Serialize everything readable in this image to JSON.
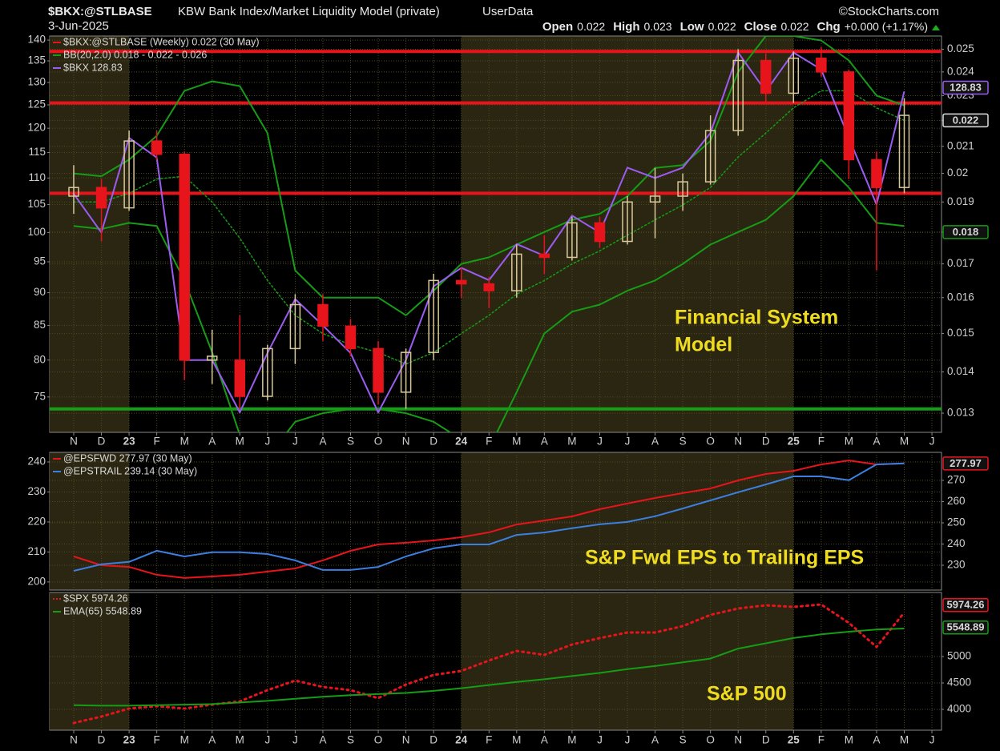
{
  "header": {
    "symbol": "$BKX:@STLBASE",
    "title": "KBW Bank Index/Market Liquidity Model (private)",
    "source": "UserData",
    "date": "3-Jun-2025",
    "copyright": "©StockCharts.com",
    "quote": [
      {
        "label": "Open",
        "value": "0.022"
      },
      {
        "label": "High",
        "value": "0.023"
      },
      {
        "label": "Low",
        "value": "0.022"
      },
      {
        "label": "Close",
        "value": "0.022"
      },
      {
        "label": "Chg",
        "value": "+0.000 (+1.17%)"
      }
    ]
  },
  "chart_data": [
    {
      "type": "candlestick",
      "annotation": [
        "Financial System",
        "Model"
      ],
      "categories": [
        "N",
        "D",
        "23",
        "F",
        "M",
        "A",
        "M",
        "J",
        "J",
        "A",
        "S",
        "O",
        "N",
        "D",
        "24",
        "F",
        "M",
        "A",
        "M",
        "J",
        "J",
        "A",
        "S",
        "O",
        "N",
        "D",
        "25",
        "F",
        "M",
        "A",
        "M",
        "J"
      ],
      "ylog": true,
      "ylim": [
        70.5,
        141
      ],
      "yticks": [
        75,
        80,
        85,
        90,
        95,
        100,
        105,
        110,
        115,
        120,
        125,
        130,
        135,
        140
      ],
      "y2log": true,
      "y2lim": [
        0.01256,
        0.0256
      ],
      "y2ticks": [
        0.013,
        0.014,
        0.015,
        0.016,
        0.017,
        0.018,
        0.019,
        0.02,
        0.021,
        0.022,
        0.023,
        0.024,
        0.025
      ],
      "grid": true,
      "hlines": [
        {
          "value": 0.0249,
          "color": "#e8141c"
        },
        {
          "value": 0.0227,
          "color": "#e8141c"
        },
        {
          "value": 0.0193,
          "color": "#e8141c"
        },
        {
          "value": 0.0131,
          "color": "#169c16"
        }
      ],
      "series": [
        {
          "name": "$BKX:@STLBASE (Weekly) 0.022 (30 May)",
          "color": "#e8141c",
          "up_color": "#d9c89a",
          "axis": "y2",
          "open": [
            0.0192,
            0.0195,
            0.0188,
            0.0212,
            0.0207,
            0.0143,
            0.0143,
            0.0134,
            0.0146,
            0.0158,
            0.0152,
            0.0146,
            0.0135,
            0.0145,
            0.0165,
            0.0164,
            0.0162,
            0.0173,
            0.0172,
            0.0183,
            0.0177,
            0.019,
            0.0192,
            0.0197,
            0.0216,
            0.0245,
            0.0231,
            0.0246,
            0.024,
            0.0205,
            0.0195,
            null
          ],
          "high": [
            0.0203,
            0.0198,
            0.0216,
            0.0216,
            0.0208,
            0.0151,
            0.0155,
            0.0147,
            0.0161,
            0.0161,
            0.0154,
            0.0148,
            0.0146,
            0.0167,
            0.0169,
            0.0166,
            0.0176,
            0.0179,
            0.0185,
            0.0185,
            0.0192,
            0.0202,
            0.02,
            0.0222,
            0.025,
            0.0248,
            0.0249,
            0.0251,
            0.0241,
            0.0208,
            0.0229,
            null
          ],
          "low": [
            0.0186,
            0.0177,
            0.0187,
            0.0205,
            0.0138,
            0.0137,
            0.0131,
            0.0133,
            0.0142,
            0.0148,
            0.0144,
            0.0132,
            0.0131,
            0.0143,
            0.016,
            0.0157,
            0.016,
            0.0167,
            0.0171,
            0.0175,
            0.0176,
            0.0178,
            0.0187,
            0.0196,
            0.0214,
            0.0227,
            0.0227,
            0.0238,
            0.0198,
            0.0168,
            0.0193,
            null
          ],
          "close": [
            0.0195,
            0.0188,
            0.0212,
            0.0207,
            0.0143,
            0.0144,
            0.0134,
            0.0146,
            0.0158,
            0.0152,
            0.0146,
            0.0135,
            0.0145,
            0.0165,
            0.0164,
            0.0162,
            0.0173,
            0.0172,
            0.0183,
            0.0177,
            0.019,
            0.0192,
            0.0197,
            0.0216,
            0.0245,
            0.0231,
            0.0246,
            0.024,
            0.0205,
            0.0195,
            0.0222,
            null
          ]
        },
        {
          "name": "BB(20,2.0) 0.018 - 0.022 - 0.026",
          "color": "#169c16",
          "axis": "y2",
          "upper": [
            0.02,
            0.0199,
            0.0205,
            0.0214,
            0.0232,
            0.0236,
            0.0234,
            0.0215,
            0.0168,
            0.016,
            0.016,
            0.016,
            0.0155,
            0.0162,
            0.017,
            0.0172,
            0.0176,
            0.018,
            0.0184,
            0.0186,
            0.0192,
            0.0202,
            0.0203,
            0.0212,
            0.024,
            0.0256,
            0.0256,
            0.0254,
            0.0245,
            0.023,
            0.0226,
            null
          ],
          "middle": [
            0.019,
            0.019,
            0.0193,
            0.0198,
            0.0199,
            0.019,
            0.0178,
            0.0165,
            0.0155,
            0.015,
            0.0147,
            0.0145,
            0.0142,
            0.0145,
            0.015,
            0.0155,
            0.0161,
            0.0165,
            0.017,
            0.0174,
            0.0179,
            0.0184,
            0.0189,
            0.0195,
            0.0206,
            0.0215,
            0.0225,
            0.0232,
            0.0232,
            0.0225,
            0.022,
            null
          ],
          "lower": [
            0.0182,
            0.0181,
            0.0183,
            0.0182,
            0.0165,
            0.0145,
            0.0125,
            0.012,
            0.0128,
            0.013,
            0.0131,
            0.0131,
            0.013,
            0.0128,
            0.0124,
            0.0122,
            0.0135,
            0.015,
            0.0156,
            0.0158,
            0.0162,
            0.0165,
            0.017,
            0.0176,
            0.018,
            0.0184,
            0.0192,
            0.0205,
            0.0195,
            0.0183,
            0.0182,
            null
          ],
          "middle_style": "dotted"
        },
        {
          "name": "$BKX 128.83",
          "color": "#9b5cf2",
          "axis": "y",
          "values": [
            107,
            100,
            118,
            114,
            80,
            80,
            73,
            81,
            89,
            85,
            81,
            73,
            80,
            91,
            94,
            92,
            98,
            96,
            103,
            100,
            112,
            110,
            112,
            119,
            137,
            128,
            137,
            133,
            118,
            105,
            128,
            null
          ]
        }
      ],
      "end_labels": [
        {
          "value": 128.83,
          "axis": "y",
          "color": "#9b5cf2"
        },
        {
          "value": 0.022,
          "axis": "y2",
          "color": "#e0e0e0"
        },
        {
          "value": 0.018,
          "axis": "y2",
          "color": "#169c16"
        }
      ]
    },
    {
      "type": "line",
      "annotation": [
        "S&P Fwd EPS to Trailing EPS"
      ],
      "ylim": [
        197.3,
        243.2
      ],
      "yticks": [
        200,
        210,
        220,
        230,
        240
      ],
      "y2lim": [
        218.3,
        283.2
      ],
      "y2ticks": [
        230,
        240,
        250,
        260,
        270
      ],
      "grid": true,
      "series": [
        {
          "name": "@EPSFWD 277.97 (30 May)",
          "color": "#e8141c",
          "axis": "y2",
          "values": [
            234.2,
            230,
            229.2,
            225.5,
            224,
            224.7,
            225.5,
            227,
            228.5,
            232.3,
            236.8,
            239.8,
            240.6,
            241.7,
            243.2,
            245.5,
            249.2,
            251.1,
            253,
            256.4,
            259.1,
            261.7,
            264,
            266.2,
            270,
            273,
            274.5,
            277.5,
            279.4,
            277.5,
            278,
            null
          ]
        },
        {
          "name": "@EPSTRAIL 239.14 (30 May)",
          "color": "#3c7fe0",
          "axis": "y",
          "values": [
            203.7,
            205.9,
            206.7,
            210.4,
            208.5,
            209.9,
            209.9,
            209.3,
            207.2,
            204,
            204,
            205,
            208.5,
            211.2,
            212.5,
            212.5,
            215.7,
            216.5,
            217.9,
            219.2,
            220,
            221.9,
            224.5,
            227.2,
            229.9,
            232.5,
            235.2,
            235.2,
            233.9,
            239.2,
            239.5,
            null
          ]
        }
      ],
      "end_labels": [
        {
          "value": 277.97,
          "axis": "y2",
          "color": "#e8141c"
        }
      ]
    },
    {
      "type": "line",
      "annotation": [
        "S&P 500"
      ],
      "categories": [
        "N",
        "D",
        "23",
        "F",
        "M",
        "A",
        "M",
        "J",
        "J",
        "A",
        "S",
        "O",
        "N",
        "D",
        "24",
        "F",
        "M",
        "A",
        "M",
        "J",
        "J",
        "A",
        "S",
        "O",
        "N",
        "D",
        "25",
        "F",
        "M",
        "A",
        "M",
        "J"
      ],
      "y2lim": [
        3606,
        6212
      ],
      "y2ticks": [
        4000,
        4500,
        5000
      ],
      "grid": true,
      "series": [
        {
          "name": "$SPX 5974.26",
          "color": "#e8141c",
          "axis": "y2",
          "style": "dotted",
          "values": [
            3742,
            3864,
            4015,
            4061,
            4015,
            4091,
            4152,
            4364,
            4545,
            4424,
            4364,
            4212,
            4470,
            4652,
            4727,
            4924,
            5106,
            5030,
            5227,
            5348,
            5455,
            5455,
            5576,
            5788,
            5909,
            5970,
            5939,
            5985,
            5636,
            5182,
            5833,
            null
          ]
        },
        {
          "name": "EMA(65) 5548.89",
          "color": "#169c16",
          "axis": "y2",
          "values": [
            4080,
            4070,
            4070,
            4080,
            4090,
            4100,
            4130,
            4160,
            4200,
            4240,
            4270,
            4290,
            4310,
            4350,
            4400,
            4460,
            4520,
            4570,
            4630,
            4690,
            4760,
            4820,
            4890,
            4960,
            5150,
            5250,
            5350,
            5420,
            5470,
            5510,
            5530,
            null
          ]
        }
      ],
      "end_labels": [
        {
          "value": 5974.26,
          "axis": "y2",
          "color": "#e8141c"
        },
        {
          "value": 5548.89,
          "axis": "y2",
          "color": "#169c16"
        }
      ]
    }
  ]
}
